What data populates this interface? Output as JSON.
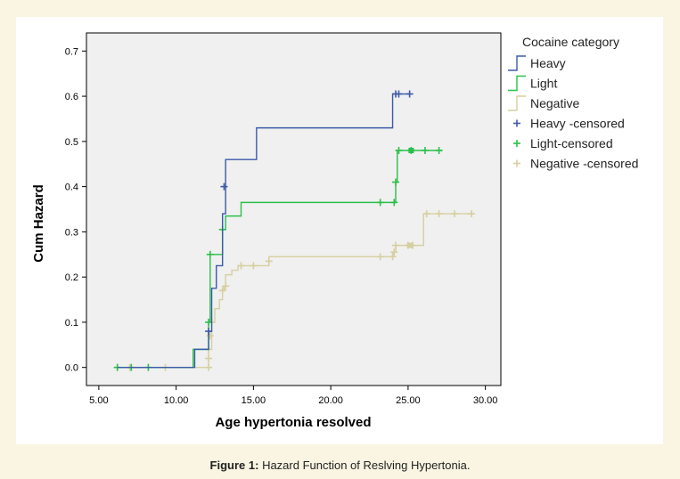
{
  "caption": {
    "label": "Figure 1:",
    "text": "Hazard Function of Reslving Hypertonia."
  },
  "chart_data": {
    "type": "line",
    "step": true,
    "title": "",
    "xlabel": "Age hypertonia resolved",
    "ylabel": "Cum Hazard",
    "xlim": [
      4.2,
      31.0
    ],
    "ylim": [
      -0.04,
      0.74
    ],
    "x_ticks": [
      5,
      10,
      15,
      20,
      25,
      30
    ],
    "x_tick_labels": [
      "5.00",
      "10.00",
      "15.00",
      "20.00",
      "25.00",
      "30.00"
    ],
    "y_ticks": [
      0,
      0.1,
      0.2,
      0.3,
      0.4,
      0.5,
      0.6,
      0.7
    ],
    "y_tick_labels": [
      "0.0",
      "0.1",
      "0.2",
      "0.3",
      "0.4",
      "0.5",
      "0.6",
      "0.7"
    ],
    "grid": false,
    "plot_background": "#f0f0f0",
    "legend": {
      "title": "Cocaine category",
      "position": "right",
      "entries": [
        {
          "label": "Heavy",
          "kind": "line",
          "color": "#3c5aa8"
        },
        {
          "label": "Light",
          "kind": "line",
          "color": "#2bbf4a"
        },
        {
          "label": "Negative",
          "kind": "line",
          "color": "#d6cfa0"
        },
        {
          "label": "Heavy  -censored",
          "kind": "plus",
          "color": "#3c5aa8"
        },
        {
          "label": "Light-censored",
          "kind": "plus",
          "color": "#2bbf4a"
        },
        {
          "label": "Negative  -censored",
          "kind": "plus",
          "color": "#d6cfa0"
        }
      ]
    },
    "series": [
      {
        "name": "Heavy",
        "color": "#3c5aa8",
        "steps": [
          [
            6.2,
            0.0
          ],
          [
            11.2,
            0.04
          ],
          [
            12.1,
            0.08
          ],
          [
            12.3,
            0.175
          ],
          [
            12.6,
            0.225
          ],
          [
            13.0,
            0.34
          ],
          [
            13.2,
            0.46
          ],
          [
            15.2,
            0.53
          ],
          [
            24.0,
            0.605
          ],
          [
            25.1,
            0.605
          ]
        ],
        "censored": [
          [
            12.1,
            0.08
          ],
          [
            13.1,
            0.4
          ],
          [
            24.2,
            0.605
          ],
          [
            24.4,
            0.605
          ],
          [
            25.1,
            0.605
          ]
        ]
      },
      {
        "name": "Light",
        "color": "#2bbf4a",
        "steps": [
          [
            6.2,
            0.0
          ],
          [
            11.1,
            0.04
          ],
          [
            12.1,
            0.1
          ],
          [
            12.2,
            0.25
          ],
          [
            12.9,
            0.25
          ],
          [
            13.0,
            0.305
          ],
          [
            13.2,
            0.335
          ],
          [
            14.2,
            0.365
          ],
          [
            24.0,
            0.365
          ],
          [
            24.2,
            0.41
          ],
          [
            24.3,
            0.48
          ],
          [
            27.2,
            0.48
          ]
        ],
        "censored": [
          [
            6.2,
            0.0
          ],
          [
            7.1,
            0.0
          ],
          [
            8.2,
            0.0
          ],
          [
            12.1,
            0.1
          ],
          [
            12.2,
            0.25
          ],
          [
            13.0,
            0.305
          ],
          [
            23.2,
            0.365
          ],
          [
            24.1,
            0.365
          ],
          [
            24.2,
            0.41
          ],
          [
            24.4,
            0.48
          ],
          [
            25.2,
            0.48
          ],
          [
            26.1,
            0.48
          ],
          [
            27.0,
            0.48
          ]
        ],
        "censored_squares": [
          [
            25.2,
            0.48
          ]
        ]
      },
      {
        "name": "Negative",
        "color": "#d6cfa0",
        "steps": [
          [
            6.2,
            0.0
          ],
          [
            12.1,
            0.04
          ],
          [
            12.3,
            0.1
          ],
          [
            12.5,
            0.13
          ],
          [
            12.8,
            0.15
          ],
          [
            13.0,
            0.17
          ],
          [
            13.1,
            0.18
          ],
          [
            13.2,
            0.205
          ],
          [
            13.6,
            0.215
          ],
          [
            14.0,
            0.225
          ],
          [
            16.0,
            0.245
          ],
          [
            24.0,
            0.255
          ],
          [
            24.2,
            0.27
          ],
          [
            26.0,
            0.34
          ],
          [
            29.1,
            0.34
          ]
        ],
        "censored": [
          [
            6.2,
            0.0
          ],
          [
            7.0,
            0.0
          ],
          [
            9.3,
            0.0
          ],
          [
            12.1,
            0.0
          ],
          [
            12.1,
            0.02
          ],
          [
            12.1,
            0.04
          ],
          [
            12.2,
            0.07
          ],
          [
            12.3,
            0.1
          ],
          [
            13.0,
            0.17
          ],
          [
            13.2,
            0.18
          ],
          [
            14.2,
            0.225
          ],
          [
            15.0,
            0.225
          ],
          [
            16.0,
            0.235
          ],
          [
            23.2,
            0.245
          ],
          [
            24.0,
            0.245
          ],
          [
            24.1,
            0.255
          ],
          [
            24.2,
            0.27
          ],
          [
            25.0,
            0.27
          ],
          [
            25.3,
            0.27
          ],
          [
            26.2,
            0.34
          ],
          [
            27.0,
            0.34
          ],
          [
            28.0,
            0.34
          ],
          [
            29.1,
            0.34
          ]
        ],
        "censored_squares": [
          [
            25.1,
            0.27
          ]
        ]
      }
    ]
  }
}
